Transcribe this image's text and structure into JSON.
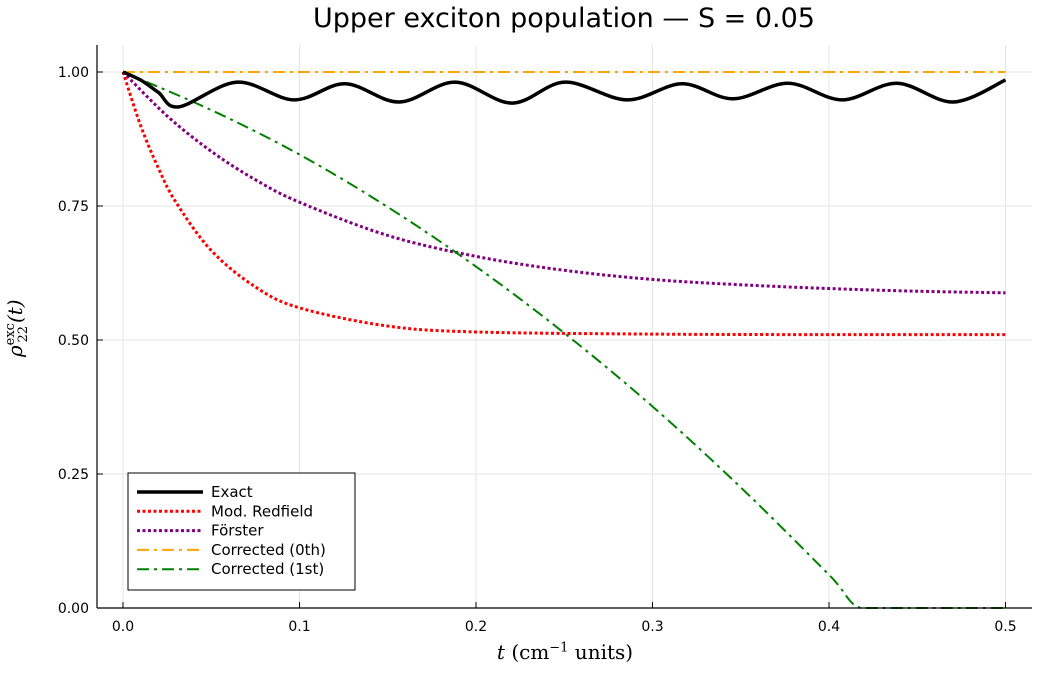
{
  "chart_data": {
    "type": "line",
    "title": "Upper exciton population — S = 0.05",
    "xlabel": {
      "var": "t",
      "unit": "(cm",
      "exp": "−1",
      "rest": " units)"
    },
    "ylabel": {
      "symbol": "ρ",
      "sub": "22",
      "sup": "exc",
      "arg": "(t)"
    },
    "xlim": [
      -0.015,
      0.515
    ],
    "ylim": [
      0,
      1.05
    ],
    "xticks": [
      0.0,
      0.1,
      0.2,
      0.3,
      0.4,
      0.5
    ],
    "xtick_labels": [
      "0.0",
      "0.1",
      "0.2",
      "0.3",
      "0.4",
      "0.5"
    ],
    "yticks": [
      0.0,
      0.25,
      0.5,
      0.75,
      1.0
    ],
    "ytick_labels": [
      "0.00",
      "0.25",
      "0.50",
      "0.75",
      "1.00"
    ],
    "grid": true,
    "legend_position": "bottom-left",
    "series": [
      {
        "name": "Exact",
        "color": "#000000",
        "style": "solid",
        "x": [
          0,
          0.01,
          0.02,
          0.0317,
          0.0646,
          0.0969,
          0.1258,
          0.1564,
          0.1881,
          0.2204,
          0.2504,
          0.2856,
          0.3167,
          0.3456,
          0.3768,
          0.4074,
          0.4385,
          0.4703,
          0.5
        ],
        "y": [
          1.0,
          0.985,
          0.962,
          0.935,
          0.981,
          0.948,
          0.978,
          0.944,
          0.981,
          0.942,
          0.981,
          0.948,
          0.978,
          0.95,
          0.979,
          0.948,
          0.979,
          0.944,
          0.985
        ]
      },
      {
        "name": "Mod. Redfield",
        "color": "#ff0000",
        "style": "dotted",
        "x": [
          0,
          0.01,
          0.02,
          0.03,
          0.05,
          0.075,
          0.1,
          0.15,
          0.2,
          0.3,
          0.4,
          0.5
        ],
        "y": [
          1.0,
          0.9,
          0.821,
          0.757,
          0.667,
          0.599,
          0.56,
          0.526,
          0.515,
          0.511,
          0.51,
          0.51
        ]
      },
      {
        "name": "Förster",
        "color": "#800080",
        "style": "dotted",
        "x": [
          0,
          0.025,
          0.05,
          0.075,
          0.1,
          0.15,
          0.2,
          0.25,
          0.3,
          0.35,
          0.4,
          0.45,
          0.5
        ],
        "y": [
          1.0,
          0.918,
          0.852,
          0.799,
          0.757,
          0.695,
          0.656,
          0.63,
          0.613,
          0.603,
          0.596,
          0.591,
          0.588
        ]
      },
      {
        "name": "Corrected (0th)",
        "color": "#ffa500",
        "style": "dashdot",
        "x": [
          0,
          0.5
        ],
        "y": [
          1.0,
          1.0
        ]
      },
      {
        "name": "Corrected (1st)",
        "color": "#008000",
        "style": "dashdot",
        "x": [
          0,
          0.05,
          0.1,
          0.15,
          0.2,
          0.25,
          0.3,
          0.35,
          0.4,
          0.418,
          0.45,
          0.5
        ],
        "y": [
          1.0,
          0.929,
          0.846,
          0.748,
          0.637,
          0.513,
          0.376,
          0.225,
          0.062,
          0.0,
          0.0,
          0.0
        ]
      }
    ]
  }
}
